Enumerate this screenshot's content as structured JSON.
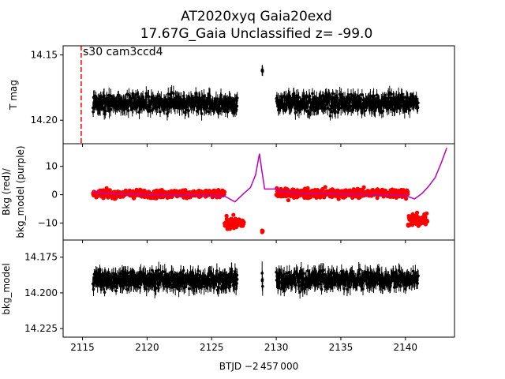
{
  "figure": {
    "title_line1": "AT2020xyq  Gaia20exd",
    "title_line2": "17.67G_Gaia Unclassified z= -99.0",
    "xlabel": "BTJD −2 457 000",
    "annotation": "s30 cam3ccd4"
  },
  "chart_data": [
    {
      "type": "scatter",
      "panel": "top",
      "ylabel": "T mag",
      "xlim": [
        2113.5,
        2143.8
      ],
      "ylim": [
        14.218,
        14.143
      ],
      "y_inverted": true,
      "yticks": [
        14.15,
        14.2
      ],
      "ytick_labels": [
        "14.15",
        "14.20"
      ],
      "series": [
        {
          "color": "#000000",
          "marker": "point-with-errorbars",
          "segments": [
            {
              "x_range": [
                2115.8,
                2127.0
              ],
              "y_center": 14.187,
              "y_spread": 0.012,
              "err": 0.004
            },
            {
              "x_range": [
                2128.9,
                2128.95
              ],
              "y_center": 14.162,
              "y_spread": 0.002,
              "err": 0.005
            },
            {
              "x_range": [
                2130.0,
                2141.0
              ],
              "y_center": 14.187,
              "y_spread": 0.012,
              "err": 0.004
            }
          ]
        }
      ],
      "vline": {
        "x": 2114.9,
        "color": "#ff0000",
        "style": "dashed"
      }
    },
    {
      "type": "scatter",
      "panel": "middle",
      "ylabel_line1": "Bkg (red)/",
      "ylabel_line2": "bkg_model (purple)",
      "xlim": [
        2113.5,
        2143.8
      ],
      "ylim": [
        -16,
        18
      ],
      "yticks": [
        -10,
        0,
        10
      ],
      "ytick_labels": [
        "−10",
        "0",
        "10"
      ],
      "series": [
        {
          "name": "",
          "color": "#ff0000",
          "marker": "dot",
          "segments": [
            {
              "x_range": [
                2115.8,
                2126.0
              ],
              "y_center": 0.3,
              "y_spread": 2.5
            },
            {
              "x_range": [
                2126.0,
                2127.5
              ],
              "y_center": -10.0,
              "y_spread": 3.5
            },
            {
              "x_range": [
                2128.9,
                2128.95
              ],
              "y_center": -13.0,
              "y_spread": 1.0
            },
            {
              "x_range": [
                2130.0,
                2140.2
              ],
              "y_center": 0.5,
              "y_spread": 2.8
            },
            {
              "x_range": [
                2140.2,
                2141.7
              ],
              "y_center": -9.0,
              "y_spread": 4.0
            }
          ]
        },
        {
          "name": "",
          "color": "#bb00bb",
          "marker": "line",
          "x": [
            2115.8,
            2117,
            2119,
            2121,
            2123,
            2125,
            2126,
            2126.8,
            2127.5,
            2128.0,
            2128.4,
            2128.7,
            2128.9,
            2129.1,
            2130.0,
            2130.5,
            2132,
            2134,
            2136,
            2138,
            2140,
            2140.7,
            2141.3,
            2141.8,
            2142.3,
            2142.8,
            2143.2
          ],
          "y": [
            1.0,
            0.3,
            0.2,
            0.0,
            -0.2,
            -0.3,
            -0.5,
            -2.5,
            0.5,
            2.5,
            7.0,
            14.5,
            8.0,
            2.0,
            2.0,
            1.0,
            0.5,
            0.3,
            0.2,
            0.0,
            -0.3,
            -1.5,
            0.5,
            3.0,
            6.0,
            11.5,
            16.5
          ]
        }
      ]
    },
    {
      "type": "scatter",
      "panel": "bottom",
      "ylabel": "bkg_model",
      "xlim": [
        2113.5,
        2143.8
      ],
      "ylim": [
        14.231,
        14.163
      ],
      "y_inverted": true,
      "yticks": [
        14.175,
        14.2,
        14.225
      ],
      "ytick_labels": [
        "14.175",
        "14.200",
        "14.225"
      ],
      "xticks": [
        2115,
        2120,
        2125,
        2130,
        2135,
        2140
      ],
      "xtick_labels": [
        "2115",
        "2120",
        "2125",
        "2130",
        "2135",
        "2140"
      ],
      "series": [
        {
          "color": "#000000",
          "marker": "point-with-errorbars",
          "segments": [
            {
              "x_range": [
                2115.8,
                2127.0
              ],
              "y_center": 14.191,
              "y_spread": 0.011,
              "err": 0.004
            },
            {
              "x_range": [
                2128.9,
                2128.95
              ],
              "y_center": 14.19,
              "y_spread": 0.02,
              "err": 0.006
            },
            {
              "x_range": [
                2130.0,
                2141.0
              ],
              "y_center": 14.191,
              "y_spread": 0.011,
              "err": 0.004
            }
          ]
        }
      ]
    }
  ]
}
